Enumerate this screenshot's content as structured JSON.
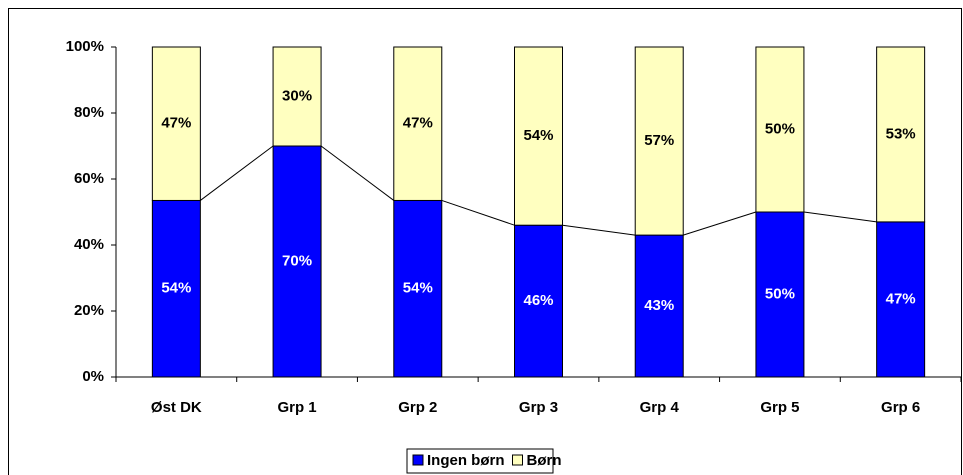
{
  "chart_data": {
    "type": "stacked_bar",
    "categories": [
      "Øst DK",
      "Grp 1",
      "Grp 2",
      "Grp 3",
      "Grp 4",
      "Grp 5",
      "Grp 6"
    ],
    "series": [
      {
        "name": "Ingen børn",
        "color": "#0000ff",
        "values": [
          53.5,
          70,
          53.5,
          46,
          43,
          50,
          47
        ],
        "value_labels": [
          "54%",
          "70%",
          "54%",
          "46%",
          "43%",
          "50%",
          "47%"
        ]
      },
      {
        "name": "Børn",
        "color": "#ffffc0",
        "values": [
          46.5,
          30,
          46.5,
          54,
          57,
          50,
          53
        ],
        "value_labels": [
          "47%",
          "30%",
          "47%",
          "54%",
          "57%",
          "50%",
          "53%"
        ]
      }
    ],
    "ylim": [
      0,
      100
    ],
    "yticks": [
      {
        "value": 0,
        "label": "0%"
      },
      {
        "value": 20,
        "label": "20%"
      },
      {
        "value": 40,
        "label": "40%"
      },
      {
        "value": 60,
        "label": "60%"
      },
      {
        "value": 80,
        "label": "80%"
      },
      {
        "value": 100,
        "label": "100%"
      }
    ],
    "legend": "bottom"
  }
}
